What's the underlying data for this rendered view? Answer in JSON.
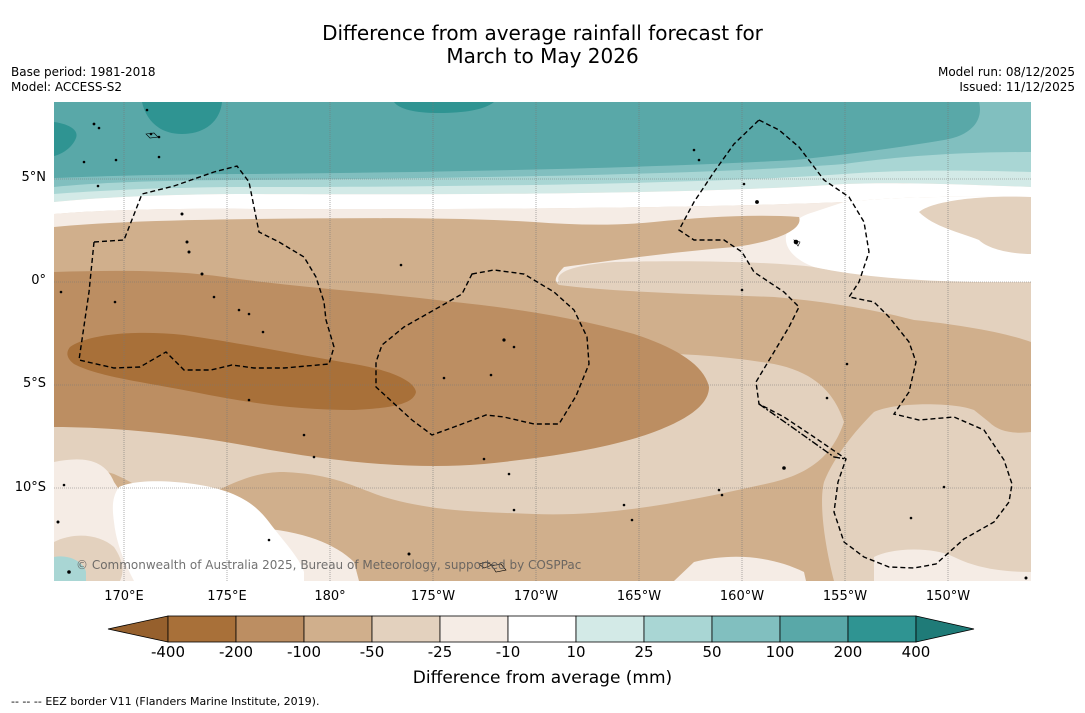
{
  "title": {
    "line1": "Difference from average rainfall forecast for",
    "line2": "March to May 2026"
  },
  "meta": {
    "base_period": "Base period: 1981-2018",
    "model": "Model: ACCESS-S2",
    "model_run": "Model run: 08/12/2025",
    "issued": "Issued: 11/12/2025"
  },
  "axes": {
    "lat_labels": [
      "5°N",
      "0°",
      "5°S",
      "10°S"
    ],
    "lon_labels": [
      "170°E",
      "175°E",
      "180°",
      "175°W",
      "170°W",
      "165°W",
      "160°W",
      "155°W",
      "150°W"
    ]
  },
  "copyright": "© Commonwealth of Australia 2025, Bureau of Meteorology, supported by COSPPac",
  "colorbar": {
    "ticks": [
      "-400",
      "-200",
      "-100",
      "-50",
      "-25",
      "-10",
      "10",
      "25",
      "50",
      "100",
      "200",
      "400"
    ],
    "colors": [
      "#a87039",
      "#bc8e62",
      "#d0af8c",
      "#e3d1be",
      "#f5ece5",
      "#ffffff",
      "#d3eae7",
      "#a9d6d4",
      "#81bfbf",
      "#59a8a8",
      "#2f9492"
    ],
    "under_color": "#96602d",
    "over_color": "#1f7b78",
    "label": "Difference from average (mm)"
  },
  "legend": {
    "eez_symbol": "-- -- --",
    "eez_text": "EEZ border V11 (Flanders Marine Institute, 2019)."
  }
}
